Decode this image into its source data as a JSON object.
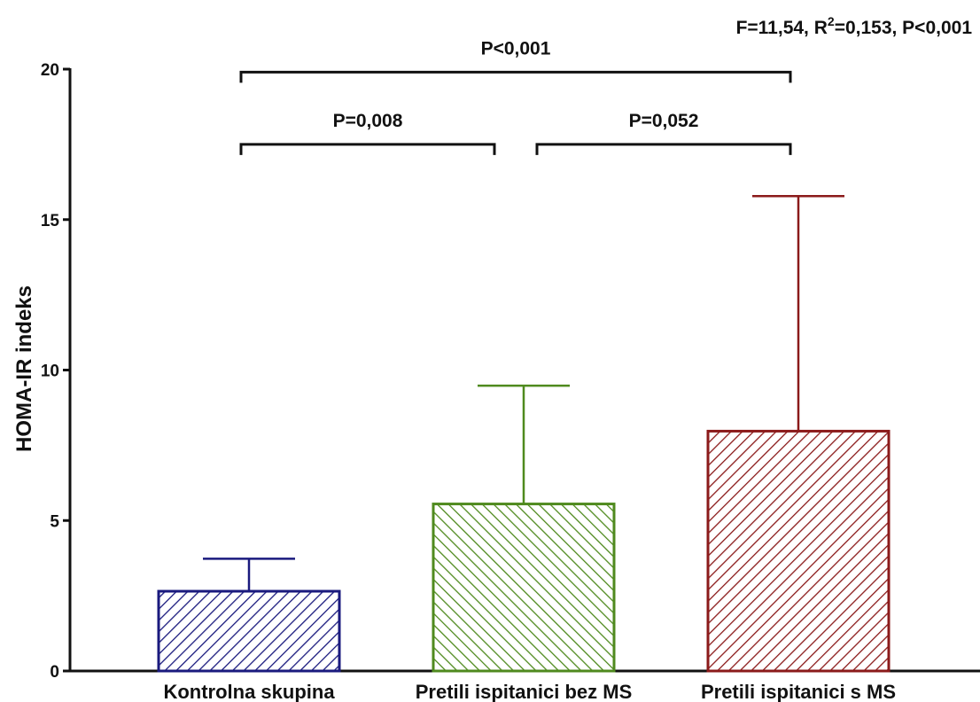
{
  "chart_data": {
    "type": "bar",
    "title": "",
    "stats_prefix": "F=11,54, R",
    "stats_sup": "2",
    "stats_suffix": "=0,153, P<0,001",
    "ylabel": "HOMA-IR indeks",
    "xlabel": "",
    "ylim": [
      0,
      20
    ],
    "yticks": [
      0,
      5,
      10,
      15,
      20
    ],
    "categories": [
      "Kontrolna skupina",
      "Pretili ispitanici bez MS",
      "Pretili ispitanici s MS"
    ],
    "values": [
      2.65,
      5.55,
      7.97
    ],
    "error_upper": [
      3.73,
      9.48,
      15.78
    ],
    "colors": [
      "#1a1a7e",
      "#4f8a1e",
      "#8b1a1a"
    ],
    "pattern": "diagonal-hatch",
    "comparisons": [
      {
        "from": 0,
        "to": 1,
        "label": "P=0,008",
        "y": 17.5
      },
      {
        "from": 1,
        "to": 2,
        "label": "P=0,052",
        "y": 17.5
      },
      {
        "from": 0,
        "to": 2,
        "label": "P<0,001",
        "y": 19.9
      }
    ],
    "grid": false,
    "legend": "none"
  }
}
